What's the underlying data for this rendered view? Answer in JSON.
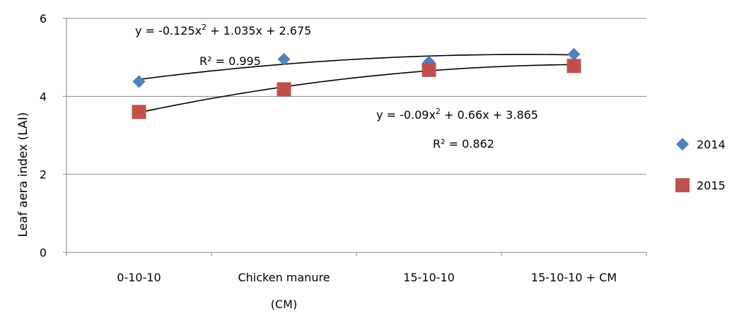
{
  "chart_data": {
    "type": "scatter",
    "categories": [
      "0-10-10",
      "Chicken manure",
      "15-10-10",
      "15-10-10 + CM"
    ],
    "category_sublabel": "(CM)",
    "ylabel": "Leaf aera index (LAI)",
    "xlabel": "",
    "ylim": [
      0,
      6
    ],
    "yticks": [
      0,
      2,
      4,
      6
    ],
    "grid": true,
    "legend_position": "right",
    "series": [
      {
        "name": "2014",
        "marker": "diamond",
        "color": "#4F81BD",
        "values": [
          4.38,
          4.95,
          4.88,
          5.08
        ],
        "trendline": {
          "type": "polynomial-2",
          "coefficients": [
            -0.125,
            1.035,
            2.675
          ],
          "equation_text": {
            "prefix": "y = -0.125x",
            "sup": "2",
            "suffix": " + 1.035x + 2.675"
          },
          "r2_label": "R² = 0.995"
        }
      },
      {
        "name": "2015",
        "marker": "square",
        "color": "#C0504D",
        "values": [
          3.6,
          4.18,
          4.68,
          4.78
        ],
        "trendline": {
          "type": "polynomial-2",
          "coefficients": [
            -0.09,
            0.66,
            3.865
          ],
          "equation_text": {
            "prefix": "y = -0.09x",
            "sup": "2",
            "suffix": " + 0.66x + 3.865"
          },
          "r2_label": "R² = 0.862"
        }
      }
    ]
  }
}
